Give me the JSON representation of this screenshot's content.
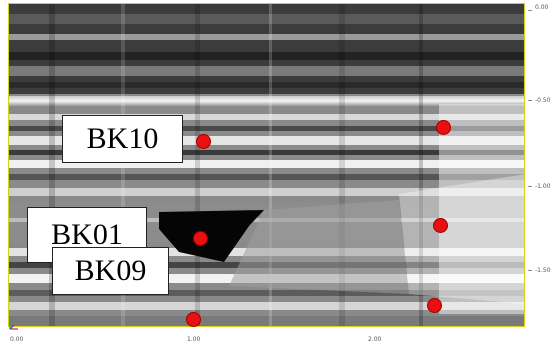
{
  "labels": {
    "bk10": "BK10",
    "bk01": "BK01",
    "bk09": "BK09"
  },
  "axes": {
    "y_ticks": [
      "0.00",
      "-0.50",
      "-1.00",
      "-1.50"
    ],
    "x_ticks": [
      "0.00",
      "1.00",
      "2.00"
    ]
  },
  "colors": {
    "marker": "#e81010",
    "frame_border": "#d8d21c",
    "background": "#ffffff"
  },
  "icons": {
    "axis_origin": "axis-origin-icon"
  }
}
